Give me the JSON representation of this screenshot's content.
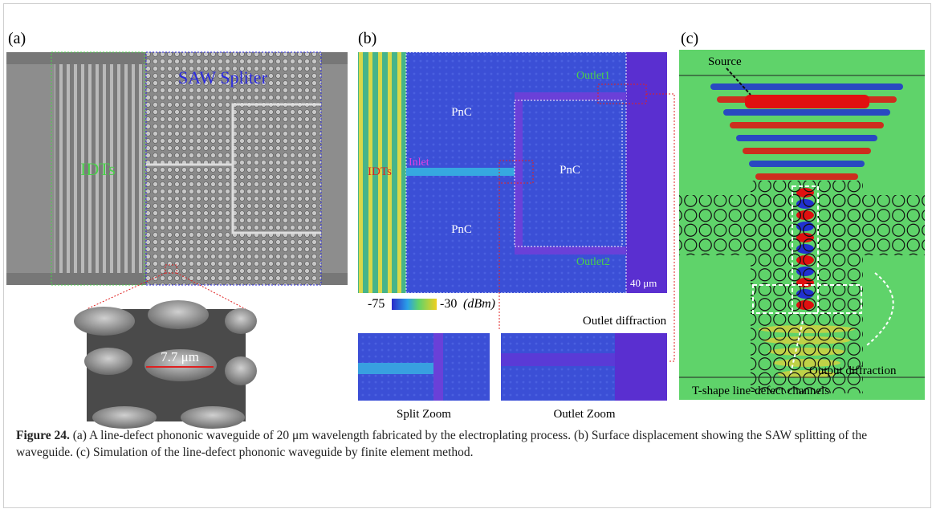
{
  "figure": {
    "panel_a": {
      "label": "(a)",
      "region_label": "SAW Spliter",
      "idt_label": "IDTs",
      "zoom_dimension": "7.7 μm"
    },
    "panel_b": {
      "label": "(b)",
      "pnc_labels": [
        "PnC",
        "PnC",
        "PnC"
      ],
      "idt_label": "IDTs",
      "inlet": "Inlet",
      "outlet1": "Outlet1",
      "outlet2": "Outlet2",
      "scale_bar": "40 μm",
      "colorbar_min": "-75",
      "colorbar_max": "-30",
      "colorbar_unit": "(dBm)",
      "outlet_diffraction": "Outlet diffraction",
      "split_zoom": "Split Zoom",
      "outlet_zoom": "Outlet Zoom"
    },
    "panel_c": {
      "label": "(c)",
      "source": "Source",
      "output_diffraction": "Output diffraction",
      "channels": "T-shape line-defect channels"
    }
  },
  "caption": {
    "label": "Figure 24.",
    "text": "(a) A line-defect phononic waveguide of 20 μm wavelength fabricated by the electroplating process. (b) Surface displacement showing the SAW splitting of the waveguide. (c) Simulation of the line-defect phononic waveguide by finite element method."
  }
}
